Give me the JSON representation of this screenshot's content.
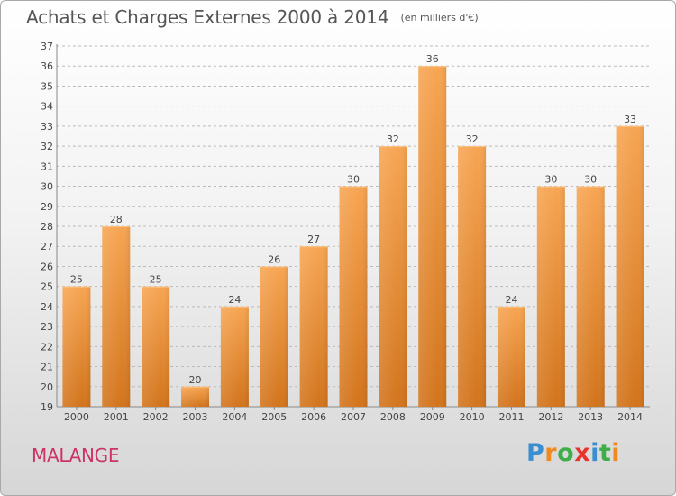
{
  "title": "Achats et Charges Externes 2000 à 2014",
  "subtitle": "(en milliers d'€)",
  "commune": "MALANGE",
  "logo": {
    "text": "Proxiti",
    "letters": [
      "P",
      "r",
      "o",
      "x",
      "i",
      "t",
      "i"
    ],
    "colors": [
      "#3a8fd0",
      "#f08a1e",
      "#3fae49",
      "#e8332a",
      "#3a8fd0",
      "#3fae49",
      "#f08a1e"
    ]
  },
  "colors": {
    "bar_light": "#f7a552",
    "bar_dark": "#d2741c",
    "grid": "#bbbbbb",
    "title": "#555555",
    "commune": "#cc3366"
  },
  "chart_data": {
    "type": "bar",
    "title": "Achats et Charges Externes 2000 à 2014",
    "subtitle": "(en milliers d'€)",
    "xlabel": "",
    "ylabel": "",
    "categories": [
      "2000",
      "2001",
      "2002",
      "2003",
      "2004",
      "2005",
      "2006",
      "2007",
      "2008",
      "2009",
      "2010",
      "2011",
      "2012",
      "2013",
      "2014"
    ],
    "values": [
      25,
      28,
      25,
      20,
      24,
      26,
      27,
      30,
      32,
      36,
      32,
      24,
      30,
      30,
      33
    ],
    "ylim": [
      19,
      37
    ],
    "yticks": [
      19,
      20,
      21,
      22,
      23,
      24,
      25,
      26,
      27,
      28,
      29,
      30,
      31,
      32,
      33,
      34,
      35,
      36,
      37
    ],
    "grid": "horizontal dashed",
    "legend": "none"
  }
}
